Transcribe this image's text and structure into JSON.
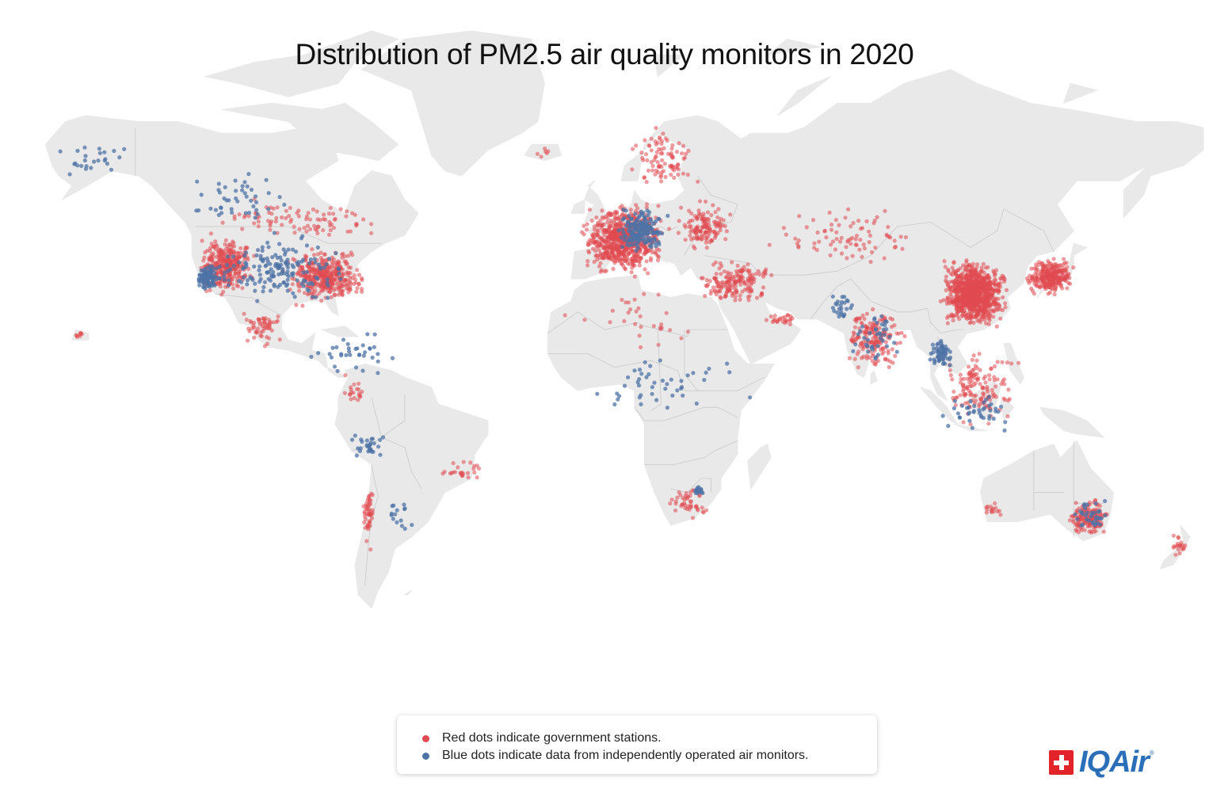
{
  "title": "Distribution of PM2.5 air quality monitors in 2020",
  "legend": {
    "government": "Red dots indicate government stations.",
    "independent": "Blue dots indicate data from independently operated air monitors."
  },
  "logo": {
    "text": "IQAir",
    "registered": "®"
  },
  "colors": {
    "background": "#ffffff",
    "land": "#e9e9e9",
    "border": "#c9c9c9",
    "government": "#e04a51",
    "independent": "#4e73a6"
  },
  "map": {
    "projection": "miller",
    "monitor_clusters": [
      {
        "region": "Western United States",
        "type": "government",
        "lon": [
          -124,
          -104
        ],
        "lat": [
          31,
          48
        ],
        "count": 330
      },
      {
        "region": "Eastern United States",
        "type": "government",
        "lon": [
          -98,
          -70
        ],
        "lat": [
          28,
          45
        ],
        "count": 380
      },
      {
        "region": "California",
        "type": "independent",
        "lon": [
          -123,
          -115
        ],
        "lat": [
          32,
          40
        ],
        "count": 90
      },
      {
        "region": "United States",
        "type": "independent",
        "lon": [
          -124,
          -72
        ],
        "lat": [
          28,
          48
        ],
        "count": 170
      },
      {
        "region": "Canada",
        "type": "government",
        "lon": [
          -125,
          -60
        ],
        "lat": [
          45,
          56
        ],
        "count": 90
      },
      {
        "region": "Canada",
        "type": "independent",
        "lon": [
          -130,
          -90
        ],
        "lat": [
          48,
          62
        ],
        "count": 45
      },
      {
        "region": "Alaska",
        "type": "independent",
        "lon": [
          -165,
          -140
        ],
        "lat": [
          58,
          68
        ],
        "count": 25
      },
      {
        "region": "Mexico",
        "type": "government",
        "lon": [
          -110,
          -95
        ],
        "lat": [
          17,
          28
        ],
        "count": 55
      },
      {
        "region": "Central America",
        "type": "independent",
        "lon": [
          -92,
          -60
        ],
        "lat": [
          8,
          22
        ],
        "count": 35
      },
      {
        "region": "Hawaii",
        "type": "government",
        "lon": [
          -160,
          -155
        ],
        "lat": [
          19,
          22
        ],
        "count": 8
      },
      {
        "region": "Colombia and Ecuador",
        "type": "government",
        "lon": [
          -80,
          -70
        ],
        "lat": [
          -3,
          10
        ],
        "count": 20
      },
      {
        "region": "Peru and Bolivia",
        "type": "independent",
        "lon": [
          -78,
          -64
        ],
        "lat": [
          -18,
          -8
        ],
        "count": 30
      },
      {
        "region": "Brazil",
        "type": "government",
        "lon": [
          -50,
          -35
        ],
        "lat": [
          -25,
          -15
        ],
        "count": 25
      },
      {
        "region": "Chile",
        "type": "government",
        "lon": [
          -73,
          -69
        ],
        "lat": [
          -42,
          -20
        ],
        "count": 50
      },
      {
        "region": "Argentina",
        "type": "independent",
        "lon": [
          -68,
          -57
        ],
        "lat": [
          -38,
          -25
        ],
        "count": 15
      },
      {
        "region": "Western Europe",
        "type": "government",
        "lon": [
          -9,
          20
        ],
        "lat": [
          36,
          56
        ],
        "count": 700
      },
      {
        "region": "Central Europe",
        "type": "independent",
        "lon": [
          2,
          20
        ],
        "lat": [
          42,
          54
        ],
        "count": 170
      },
      {
        "region": "Scandinavia",
        "type": "government",
        "lon": [
          5,
          30
        ],
        "lat": [
          56,
          70
        ],
        "count": 90
      },
      {
        "region": "Eastern Europe",
        "type": "government",
        "lon": [
          20,
          40
        ],
        "lat": [
          42,
          56
        ],
        "count": 130
      },
      {
        "region": "Iceland",
        "type": "government",
        "lon": [
          -22,
          -14
        ],
        "lat": [
          63,
          66
        ],
        "count": 6
      },
      {
        "region": "Turkey and Middle East",
        "type": "government",
        "lon": [
          26,
          52
        ],
        "lat": [
          28,
          42
        ],
        "count": 170
      },
      {
        "region": "Gulf States",
        "type": "government",
        "lon": [
          48,
          58
        ],
        "lat": [
          22,
          28
        ],
        "count": 25
      },
      {
        "region": "Central Asia",
        "type": "government",
        "lon": [
          45,
          100
        ],
        "lat": [
          38,
          55
        ],
        "count": 80
      },
      {
        "region": "Pakistan",
        "type": "independent",
        "lon": [
          66,
          75
        ],
        "lat": [
          24,
          35
        ],
        "count": 25
      },
      {
        "region": "India",
        "type": "government",
        "lon": [
          70,
          92
        ],
        "lat": [
          9,
          30
        ],
        "count": 170
      },
      {
        "region": "India",
        "type": "independent",
        "lon": [
          72,
          90
        ],
        "lat": [
          10,
          29
        ],
        "count": 40
      },
      {
        "region": "China",
        "type": "government",
        "lon": [
          100,
          122
        ],
        "lat": [
          22,
          42
        ],
        "count": 950
      },
      {
        "region": "Korea and Japan",
        "type": "government",
        "lon": [
          126,
          142
        ],
        "lat": [
          31,
          42
        ],
        "count": 280
      },
      {
        "region": "Thailand and Myanmar",
        "type": "independent",
        "lon": [
          97,
          106
        ],
        "lat": [
          10,
          20
        ],
        "count": 60
      },
      {
        "region": "Southeast Asia",
        "type": "government",
        "lon": [
          98,
          126
        ],
        "lat": [
          -8,
          18
        ],
        "count": 140
      },
      {
        "region": "Indonesia",
        "type": "independent",
        "lon": [
          100,
          125
        ],
        "lat": [
          -9,
          5
        ],
        "count": 40
      },
      {
        "region": "Africa",
        "type": "independent",
        "lon": [
          -17,
          50
        ],
        "lat": [
          -5,
          15
        ],
        "count": 45
      },
      {
        "region": "North Africa",
        "type": "government",
        "lon": [
          -17,
          35
        ],
        "lat": [
          15,
          37
        ],
        "count": 30
      },
      {
        "region": "Southern Africa",
        "type": "government",
        "lon": [
          18,
          32
        ],
        "lat": [
          -34,
          -23
        ],
        "count": 45
      },
      {
        "region": "Southern Africa",
        "type": "independent",
        "lon": [
          26,
          31
        ],
        "lat": [
          -27,
          -24
        ],
        "count": 15
      },
      {
        "region": "Eastern Australia",
        "type": "government",
        "lon": [
          138,
          153
        ],
        "lat": [
          -39,
          -27
        ],
        "count": 150
      },
      {
        "region": "Australia",
        "type": "independent",
        "lon": [
          140,
          153
        ],
        "lat": [
          -38,
          -27
        ],
        "count": 35
      },
      {
        "region": "Western Australia",
        "type": "government",
        "lon": [
          114,
          120
        ],
        "lat": [
          -34,
          -28
        ],
        "count": 15
      },
      {
        "region": "New Zealand",
        "type": "government",
        "lon": [
          168,
          178
        ],
        "lat": [
          -46,
          -36
        ],
        "count": 20
      }
    ]
  }
}
